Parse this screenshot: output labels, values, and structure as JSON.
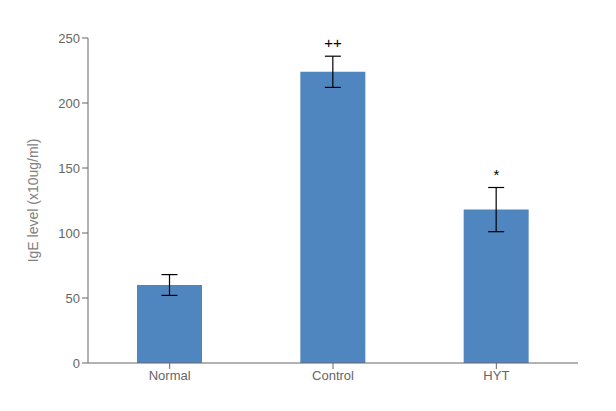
{
  "chart_data": {
    "type": "bar",
    "categories": [
      "Normal",
      "Control",
      "HYT"
    ],
    "values": [
      60,
      224,
      118
    ],
    "errors": [
      8,
      12,
      17
    ],
    "color": "#4F86C0",
    "ylabel": "IgE level (x10ug/ml)",
    "ylim": [
      0,
      250
    ],
    "yticks": [
      0,
      50,
      100,
      150,
      200,
      250
    ],
    "grid": false,
    "annotations": [
      {
        "text": "++",
        "category": "Control"
      },
      {
        "text": "*",
        "category": "HYT"
      }
    ]
  }
}
